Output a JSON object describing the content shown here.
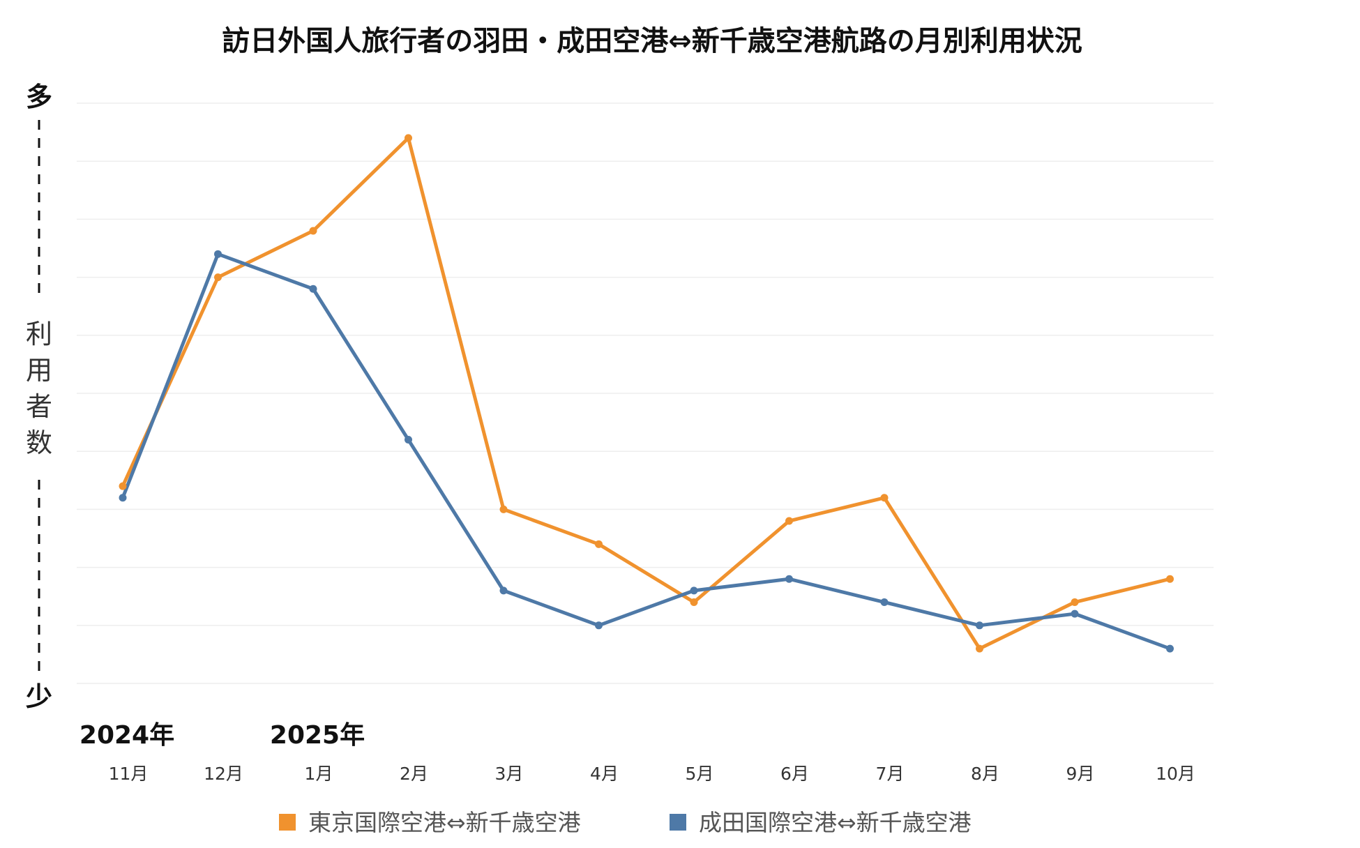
{
  "chart_data": {
    "type": "line",
    "title": "訪日外国人旅行者の羽田・成田空港⇔新千歳空港航路の月別利用状況",
    "ylabel": "利用者数",
    "y_top_label": "多",
    "y_bottom_label": "少",
    "year_labels": [
      {
        "text": "2024年",
        "category": "11月"
      },
      {
        "text": "2025年",
        "category": "1月"
      }
    ],
    "categories": [
      "11月",
      "12月",
      "1月",
      "2月",
      "3月",
      "4月",
      "5月",
      "6月",
      "7月",
      "8月",
      "9月",
      "10月"
    ],
    "ylim": [
      0,
      10
    ],
    "grid": true,
    "series": [
      {
        "name": "東京国際空港⇔新千歳空港",
        "color": "#f0922e",
        "values": [
          3.4,
          7.0,
          7.8,
          9.4,
          3.0,
          2.4,
          1.4,
          2.8,
          3.2,
          0.6,
          1.4,
          1.8
        ]
      },
      {
        "name": "成田国際空港⇔新千歳空港",
        "color": "#4e79a7",
        "values": [
          3.2,
          7.4,
          6.8,
          4.2,
          1.6,
          1.0,
          1.6,
          1.8,
          1.4,
          1.0,
          1.2,
          0.6
        ]
      }
    ],
    "legend_position": "bottom"
  }
}
